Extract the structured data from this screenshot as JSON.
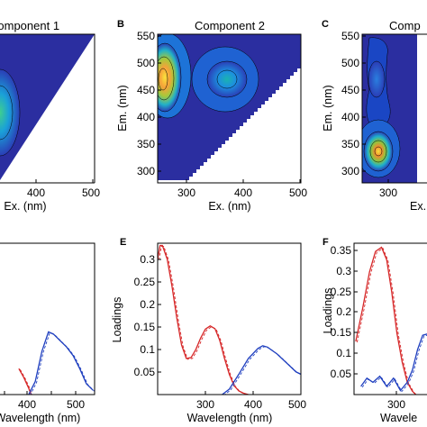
{
  "chart_data": [
    {
      "panel": "",
      "type": "heatmap",
      "title": "Component 1",
      "xlabel": "Ex. (nm)",
      "ylabel": "",
      "xticks": [
        "400",
        "500"
      ],
      "yticks": [],
      "xlim": [
        240,
        500
      ],
      "ylim": [
        280,
        550
      ],
      "peaks": [
        {
          "ex": 330,
          "em": 410,
          "level": 0.8
        }
      ]
    },
    {
      "panel": "B",
      "type": "heatmap",
      "title": "Component 2",
      "xlabel": "Ex. (nm)",
      "ylabel": "Em. (nm)",
      "xticks": [
        "300",
        "400",
        "500"
      ],
      "yticks": [
        "300",
        "350",
        "400",
        "450",
        "500",
        "550"
      ],
      "xlim": [
        250,
        500
      ],
      "ylim": [
        280,
        550
      ],
      "peaks": [
        {
          "ex": 262,
          "em": 470,
          "level": 1.0
        },
        {
          "ex": 370,
          "em": 470,
          "level": 0.6
        }
      ]
    },
    {
      "panel": "C",
      "type": "heatmap",
      "title": "Comp",
      "xlabel": "Ex.",
      "ylabel": "Em. (nm)",
      "xticks": [
        "300"
      ],
      "yticks": [
        "300",
        "350",
        "400",
        "450",
        "500",
        "550"
      ],
      "xlim": [
        250,
        330
      ],
      "ylim": [
        280,
        550
      ],
      "peaks": [
        {
          "ex": 275,
          "em": 340,
          "level": 1.0
        },
        {
          "ex": 275,
          "em": 480,
          "level": 0.25
        }
      ]
    },
    {
      "panel": "",
      "type": "line",
      "title": "",
      "xlabel": "Wavelength (nm)",
      "ylabel": "",
      "xticks": [
        "300",
        "400",
        "500"
      ],
      "yticks": [],
      "xlim": [
        258,
        545
      ],
      "ylim": [
        0,
        0.35
      ],
      "series": [
        {
          "color": "#d62728",
          "x": [
            315,
            330,
            345,
            352
          ],
          "y": [
            0.06,
            0.04,
            0.015,
            0.0
          ]
        },
        {
          "color": "#1f3fbf",
          "x": [
            345,
            365,
            385,
            405,
            420,
            440,
            460,
            480,
            500,
            520,
            540
          ],
          "y": [
            0.0,
            0.03,
            0.1,
            0.145,
            0.14,
            0.125,
            0.11,
            0.09,
            0.06,
            0.025,
            0.01
          ]
        }
      ]
    },
    {
      "panel": "E",
      "type": "line",
      "title": "",
      "xlabel": "Wavelength (nm)",
      "ylabel": "Loadings",
      "xticks": [
        "300",
        "400",
        "500"
      ],
      "yticks": [
        "0.05",
        "0.1",
        "0.15",
        "0.2",
        "0.25",
        "0.3"
      ],
      "xlim": [
        250,
        550
      ],
      "ylim": [
        0,
        0.335
      ],
      "series": [
        {
          "color": "#d62728",
          "x": [
            250,
            255,
            260,
            270,
            280,
            290,
            300,
            310,
            320,
            330,
            340,
            350,
            360,
            370,
            380,
            390,
            400,
            410,
            420,
            430,
            440
          ],
          "y": [
            0.3,
            0.33,
            0.33,
            0.3,
            0.24,
            0.17,
            0.11,
            0.08,
            0.082,
            0.1,
            0.125,
            0.145,
            0.152,
            0.146,
            0.12,
            0.08,
            0.045,
            0.02,
            0.008,
            0.003,
            0.0
          ]
        },
        {
          "color": "#1f3fbf",
          "x": [
            385,
            400,
            420,
            440,
            460,
            470,
            480,
            500,
            520,
            540,
            550
          ],
          "y": [
            0.0,
            0.012,
            0.045,
            0.08,
            0.102,
            0.108,
            0.105,
            0.09,
            0.07,
            0.05,
            0.045
          ]
        }
      ]
    },
    {
      "panel": "F",
      "type": "line",
      "title": "",
      "xlabel": "Wavele",
      "ylabel": "Loadings",
      "xticks": [
        "300"
      ],
      "yticks": [
        "0.05",
        "0.1",
        "0.15",
        "0.2",
        "0.25",
        "0.3",
        "0.35"
      ],
      "xlim": [
        250,
        335
      ],
      "ylim": [
        0,
        0.37
      ],
      "series": [
        {
          "color": "#d62728",
          "x": [
            252,
            260,
            268,
            275,
            282,
            288,
            294,
            300,
            306,
            312,
            318,
            322
          ],
          "y": [
            0.13,
            0.21,
            0.3,
            0.35,
            0.36,
            0.33,
            0.25,
            0.15,
            0.08,
            0.03,
            0.008,
            0.0
          ]
        },
        {
          "color": "#1f3fbf",
          "x": [
            258,
            265,
            272,
            280,
            288,
            296,
            304,
            312,
            318,
            324,
            330,
            335
          ],
          "y": [
            0.02,
            0.04,
            0.03,
            0.045,
            0.02,
            0.04,
            0.01,
            0.03,
            0.06,
            0.11,
            0.145,
            0.148
          ]
        }
      ]
    }
  ]
}
